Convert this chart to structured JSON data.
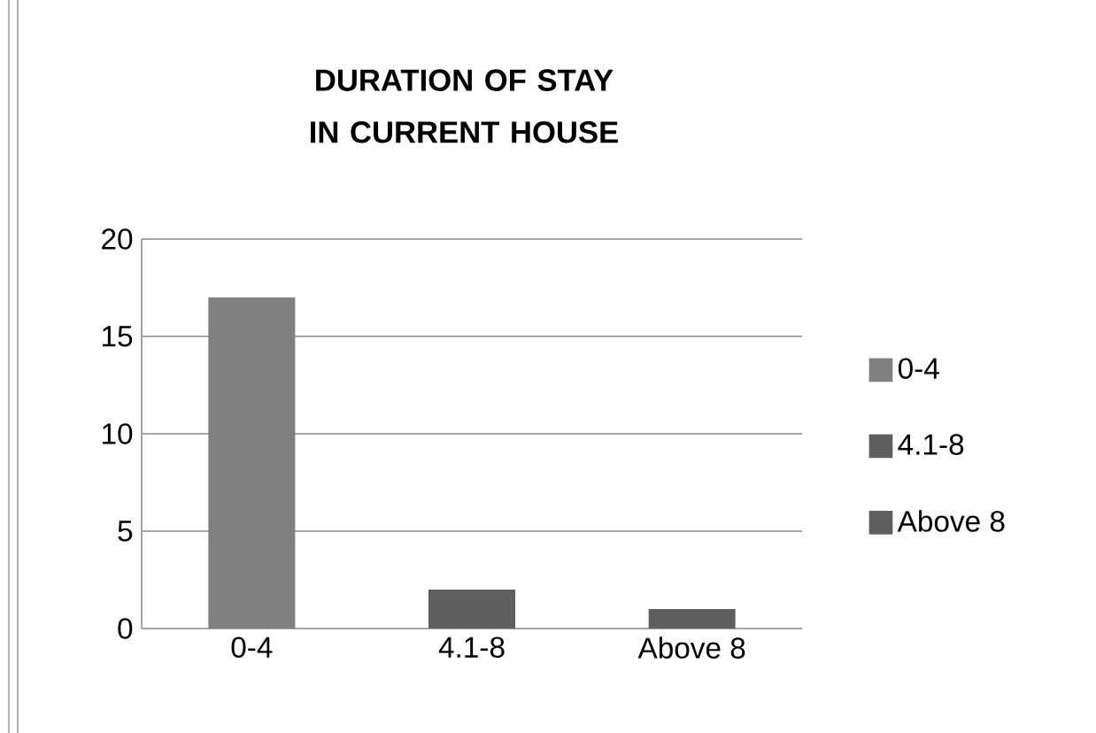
{
  "chart_data": {
    "type": "bar",
    "title": "DURATION OF STAY IN CURRENT HOUSE",
    "categories": [
      "0-4",
      "4.1-8",
      "Above 8"
    ],
    "series": [
      {
        "name": "0-4",
        "color": "#808080",
        "values": [
          17,
          null,
          null
        ]
      },
      {
        "name": "4.1-8",
        "color": "#5f5f5f",
        "values": [
          null,
          2,
          null
        ]
      },
      {
        "name": "Above 8",
        "color": "#5f5f5f",
        "values": [
          null,
          null,
          1
        ]
      }
    ],
    "stacked": true,
    "ylim": [
      0,
      20
    ],
    "yticks": [
      0,
      5,
      10,
      15,
      20
    ],
    "grid": "y",
    "legend": "right"
  }
}
